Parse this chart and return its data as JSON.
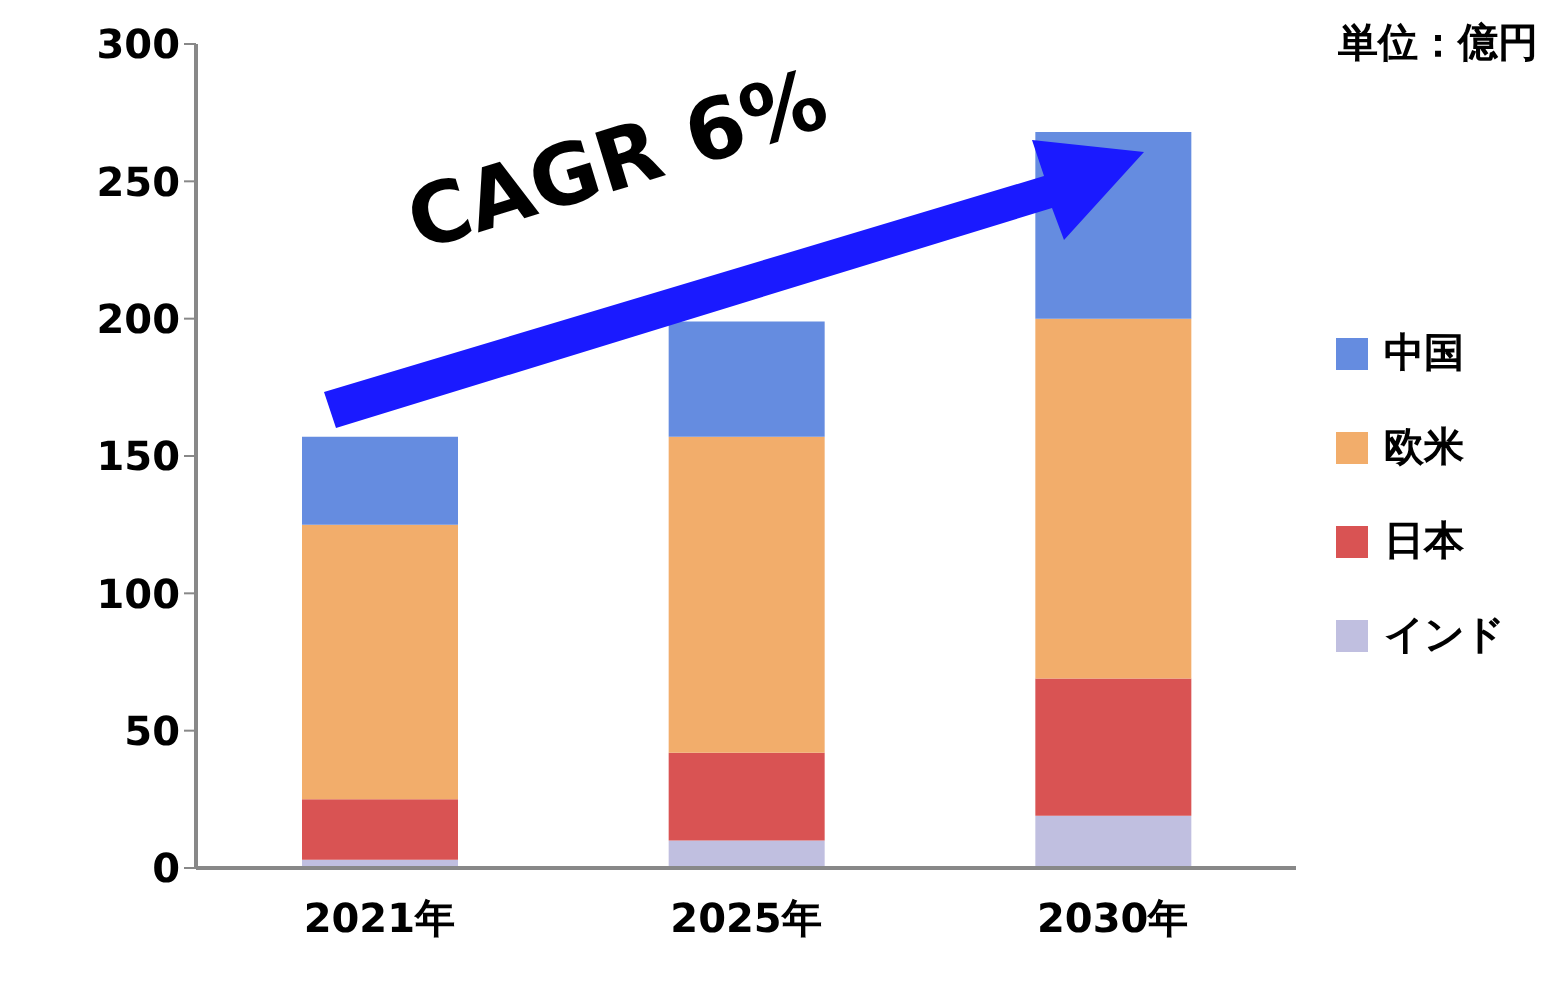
{
  "chart_data": {
    "type": "bar",
    "stacked": true,
    "categories": [
      "2021年",
      "2025年",
      "2030年"
    ],
    "series": [
      {
        "name": "インド",
        "color": "#c0bfe0",
        "values": [
          3,
          10,
          19
        ]
      },
      {
        "name": "日本",
        "color": "#d95353",
        "values": [
          22,
          32,
          50
        ]
      },
      {
        "name": "欧米",
        "color": "#f2ad6b",
        "values": [
          100,
          115,
          131
        ]
      },
      {
        "name": "中国",
        "color": "#658ce0",
        "values": [
          32,
          42,
          68
        ]
      }
    ],
    "ylim": [
      0,
      300
    ],
    "yticks": [
      0,
      50,
      100,
      150,
      200,
      250,
      300
    ],
    "grid": false,
    "legend": "right",
    "annotations": [
      "単位：億円",
      "CAGR 6%"
    ]
  }
}
